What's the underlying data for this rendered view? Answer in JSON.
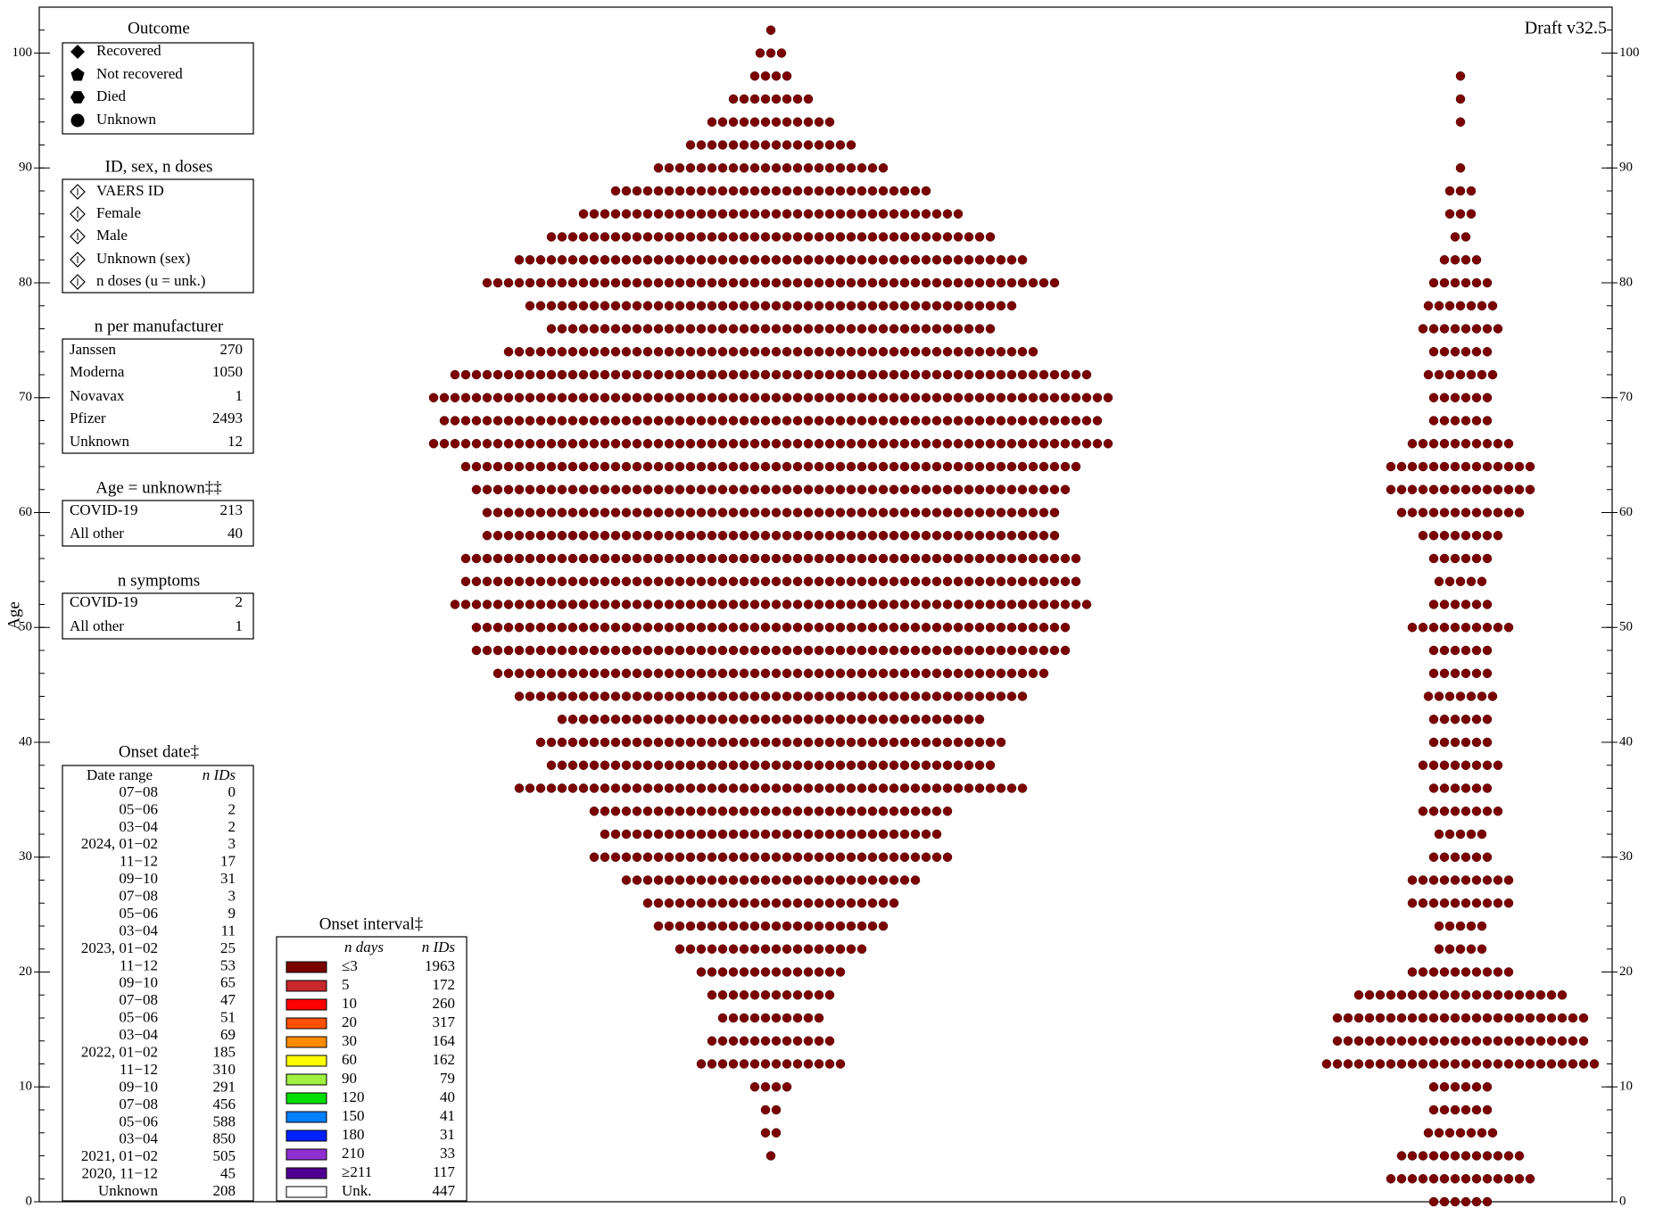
{
  "chart_data": {
    "type": "beeswarm",
    "annotation": "Draft v32.5",
    "ylabel": "Age",
    "ylim": [
      0,
      104
    ],
    "yticks": [
      0,
      10,
      20,
      30,
      40,
      50,
      60,
      70,
      80,
      90,
      100
    ],
    "yminor_step": 2,
    "color": "#7b0000",
    "clusters": [
      {
        "ages": [
          4,
          6,
          8,
          10,
          12,
          14,
          16,
          18,
          20,
          22,
          24,
          26,
          28,
          30,
          32,
          34,
          36,
          38,
          40,
          42,
          44,
          46,
          48,
          50,
          52,
          54,
          56,
          58,
          60,
          62,
          64,
          66,
          68,
          70,
          72,
          74,
          76,
          78,
          80,
          82,
          84,
          86,
          88,
          90,
          92,
          94,
          96,
          98,
          100,
          102
        ],
        "counts": [
          1,
          2,
          2,
          4,
          14,
          12,
          10,
          12,
          14,
          18,
          22,
          24,
          28,
          34,
          32,
          34,
          48,
          42,
          44,
          40,
          48,
          52,
          56,
          56,
          60,
          58,
          58,
          54,
          54,
          56,
          58,
          64,
          62,
          64,
          60,
          50,
          42,
          46,
          54,
          48,
          42,
          36,
          30,
          22,
          16,
          12,
          8,
          4,
          3,
          1
        ]
      },
      {
        "ages": [
          0,
          2,
          4,
          6,
          8,
          10,
          12,
          14,
          16,
          18,
          20,
          22,
          24,
          26,
          28,
          30,
          32,
          34,
          36,
          38,
          40,
          42,
          44,
          46,
          48,
          50,
          52,
          54,
          56,
          58,
          60,
          62,
          64,
          66,
          68,
          70,
          72,
          74,
          76,
          78,
          80,
          82,
          84,
          86,
          88,
          90,
          94,
          96,
          98
        ],
        "counts": [
          6,
          14,
          12,
          7,
          6,
          6,
          26,
          24,
          24,
          20,
          10,
          5,
          5,
          10,
          10,
          6,
          5,
          8,
          6,
          8,
          6,
          6,
          7,
          6,
          6,
          10,
          6,
          5,
          6,
          8,
          12,
          14,
          14,
          10,
          6,
          6,
          7,
          6,
          8,
          7,
          6,
          4,
          2,
          3,
          3,
          1,
          1,
          1,
          1
        ]
      }
    ],
    "legends": {
      "outcome": {
        "title": "Outcome",
        "items": [
          "Recovered",
          "Not recovered",
          "Died",
          "Unknown"
        ]
      },
      "id": {
        "title": "ID, sex, n doses",
        "items": [
          "VAERS ID",
          "Female",
          "Male",
          "Unknown (sex)",
          "n doses (u = unk.)"
        ]
      },
      "manufacturer": {
        "title": "n per manufacturer",
        "rows": [
          [
            "Janssen",
            270
          ],
          [
            "Moderna",
            1050
          ],
          [
            "Novavax",
            1
          ],
          [
            "Pfizer",
            2493
          ],
          [
            "Unknown",
            12
          ]
        ]
      },
      "age_unknown": {
        "title": "Age = unknown‡‡",
        "rows": [
          [
            "COVID-19",
            213
          ],
          [
            "All other",
            40
          ]
        ]
      },
      "symptoms": {
        "title": "n symptoms",
        "rows": [
          [
            "COVID-19",
            2
          ],
          [
            "All other",
            1
          ]
        ]
      },
      "onset_date": {
        "title": "Onset date‡",
        "headers": [
          "Date range",
          "n IDs"
        ],
        "rows": [
          [
            "07−08",
            0
          ],
          [
            "05−06",
            2
          ],
          [
            "03−04",
            2
          ],
          [
            "2024, 01−02",
            3
          ],
          [
            "11−12",
            17
          ],
          [
            "09−10",
            31
          ],
          [
            "07−08",
            3
          ],
          [
            "05−06",
            9
          ],
          [
            "03−04",
            11
          ],
          [
            "2023, 01−02",
            25
          ],
          [
            "11−12",
            53
          ],
          [
            "09−10",
            65
          ],
          [
            "07−08",
            47
          ],
          [
            "05−06",
            51
          ],
          [
            "03−04",
            69
          ],
          [
            "2022, 01−02",
            185
          ],
          [
            "11−12",
            310
          ],
          [
            "09−10",
            291
          ],
          [
            "07−08",
            456
          ],
          [
            "05−06",
            588
          ],
          [
            "03−04",
            850
          ],
          [
            "2021, 01−02",
            505
          ],
          [
            "2020, 11−12",
            45
          ],
          [
            "Unknown",
            208
          ]
        ]
      },
      "onset_interval": {
        "title": "Onset interval‡",
        "headers": [
          "n days",
          "n IDs"
        ],
        "rows": [
          {
            "label": "≤3",
            "count": 1963,
            "color": "#7b0000"
          },
          {
            "label": "5",
            "count": 172,
            "color": "#c8282b"
          },
          {
            "label": "10",
            "count": 260,
            "color": "#ff0000"
          },
          {
            "label": "20",
            "count": 317,
            "color": "#ff5000"
          },
          {
            "label": "30",
            "count": 164,
            "color": "#ff8c00"
          },
          {
            "label": "60",
            "count": 162,
            "color": "#ffff00"
          },
          {
            "label": "90",
            "count": 79,
            "color": "#a0f040"
          },
          {
            "label": "120",
            "count": 40,
            "color": "#00e000"
          },
          {
            "label": "150",
            "count": 41,
            "color": "#0080ff"
          },
          {
            "label": "180",
            "count": 31,
            "color": "#0020ff"
          },
          {
            "label": "210",
            "count": 33,
            "color": "#9030d0"
          },
          {
            "label": "≥211",
            "count": 117,
            "color": "#500090"
          },
          {
            "label": "Unk.",
            "count": 447,
            "color": "#ffffff"
          }
        ]
      }
    }
  }
}
